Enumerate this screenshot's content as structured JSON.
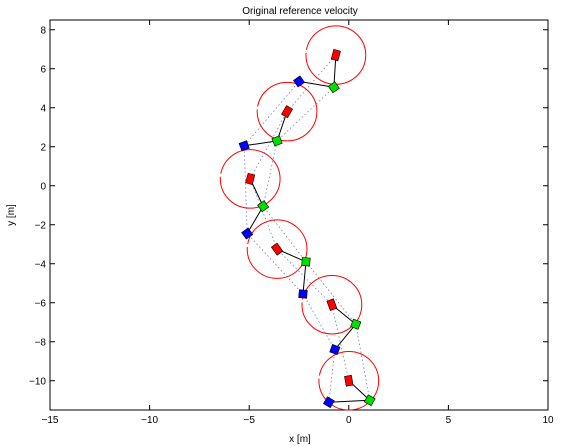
{
  "chart_data": {
    "type": "scatter",
    "title": "Original reference velocity",
    "xlabel": "x [m]",
    "ylabel": "y [m]",
    "xlim": [
      -15,
      10
    ],
    "ylim": [
      -11.5,
      8.5
    ],
    "xticks": [
      -15,
      -10,
      -5,
      0,
      5,
      10
    ],
    "yticks": [
      -10,
      -8,
      -6,
      -4,
      -2,
      0,
      2,
      4,
      6,
      8
    ],
    "grid": false,
    "colors": {
      "circle": "#ff0000",
      "red_block": "#ff0000",
      "green_block": "#00dd00",
      "blue_block": "#0000ff",
      "link": "#000000",
      "trajectory": "#6f7fb3"
    },
    "circle_radius": 1.5,
    "snapshots": [
      {
        "center": [
          0,
          -10
        ],
        "blue": [
          -1.0,
          -11.1
        ],
        "green": [
          1.05,
          -11.0
        ],
        "rot": -10
      },
      {
        "center": [
          -0.85,
          -6.1
        ],
        "blue": [
          -0.7,
          -8.4
        ],
        "green": [
          0.35,
          -7.1
        ],
        "rot": -20
      },
      {
        "center": [
          -3.6,
          -3.25
        ],
        "blue": [
          -2.3,
          -5.55
        ],
        "green": [
          -2.15,
          -3.9
        ],
        "rot": -35
      },
      {
        "center": [
          -4.95,
          0.35
        ],
        "blue": [
          -5.1,
          -2.45
        ],
        "green": [
          -4.3,
          -1.05
        ],
        "rot": 15
      },
      {
        "center": [
          -3.1,
          3.8
        ],
        "blue": [
          -5.25,
          2.05
        ],
        "green": [
          -3.6,
          2.3
        ],
        "rot": 30
      },
      {
        "center": [
          -0.65,
          6.7
        ],
        "blue": [
          -2.5,
          5.35
        ],
        "green": [
          -0.75,
          5.05
        ],
        "rot": 15
      }
    ],
    "trajectories": {
      "center": [
        [
          0,
          -10
        ],
        [
          -0.85,
          -6.1
        ],
        [
          -3.6,
          -3.25
        ],
        [
          -4.95,
          0.35
        ],
        [
          -3.1,
          3.8
        ],
        [
          -0.65,
          6.7
        ]
      ],
      "blue": [
        [
          -1.0,
          -11.1
        ],
        [
          -0.7,
          -8.4
        ],
        [
          -2.3,
          -5.55
        ],
        [
          -5.1,
          -2.45
        ],
        [
          -5.25,
          2.05
        ],
        [
          -2.5,
          5.35
        ]
      ],
      "green": [
        [
          1.05,
          -11.0
        ],
        [
          0.35,
          -7.1
        ],
        [
          -2.15,
          -3.9
        ],
        [
          -4.3,
          -1.05
        ],
        [
          -3.6,
          2.3
        ],
        [
          -0.75,
          5.05
        ]
      ]
    }
  }
}
